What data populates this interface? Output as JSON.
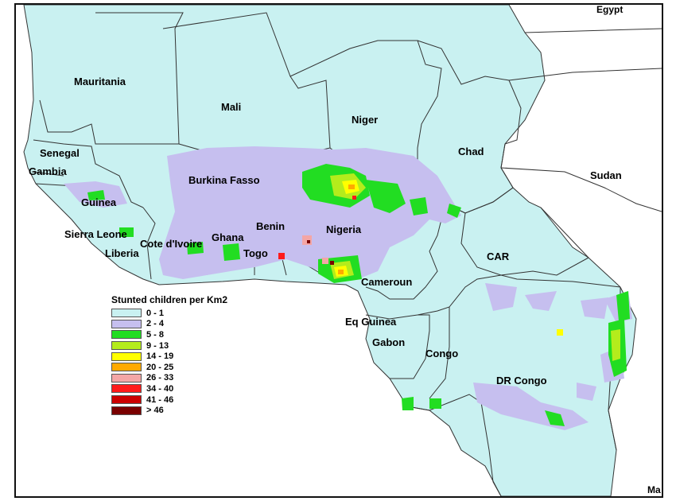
{
  "map": {
    "legend_title": "Stunted children per Km2",
    "legend": [
      {
        "label": "0 - 1",
        "color": "#c9f1f1"
      },
      {
        "label": "2 - 4",
        "color": "#c6bfef"
      },
      {
        "label": "5 - 8",
        "color": "#22dd22"
      },
      {
        "label": "9 - 13",
        "color": "#b4ec1c"
      },
      {
        "label": "14 - 19",
        "color": "#ffff00"
      },
      {
        "label": "20 - 25",
        "color": "#ffaa00"
      },
      {
        "label": "26 - 33",
        "color": "#f4a6a6"
      },
      {
        "label": "34 - 40",
        "color": "#ff1a1a"
      },
      {
        "label": "41 - 46",
        "color": "#cc0000"
      },
      {
        "label": "> 46",
        "color": "#7a0000"
      }
    ],
    "countries": {
      "mauritania": "Mauritania",
      "mali": "Mali",
      "niger": "Niger",
      "chad": "Chad",
      "sudan": "Sudan",
      "senegal": "Senegal",
      "gambia": "Gambia",
      "burkina_faso": "Burkina Fasso",
      "guinea": "Guinea",
      "sierra_leone": "Sierra Leone",
      "cote_divoire": "Cote d'Ivoire",
      "ghana": "Ghana",
      "benin": "Benin",
      "nigeria": "Nigeria",
      "togo": "Togo",
      "liberia": "Liberia",
      "car": "CAR",
      "cameroun": "Cameroun",
      "eq_guinea": "Eq Guinea",
      "gabon": "Gabon",
      "congo": "Congo",
      "dr_congo": "DR Congo",
      "egypt": "Egypt",
      "mali_partial": "Ma"
    },
    "colors": {
      "land_data": "#c9f1f1",
      "no_data": "#ffffff",
      "border": "#333333"
    }
  }
}
